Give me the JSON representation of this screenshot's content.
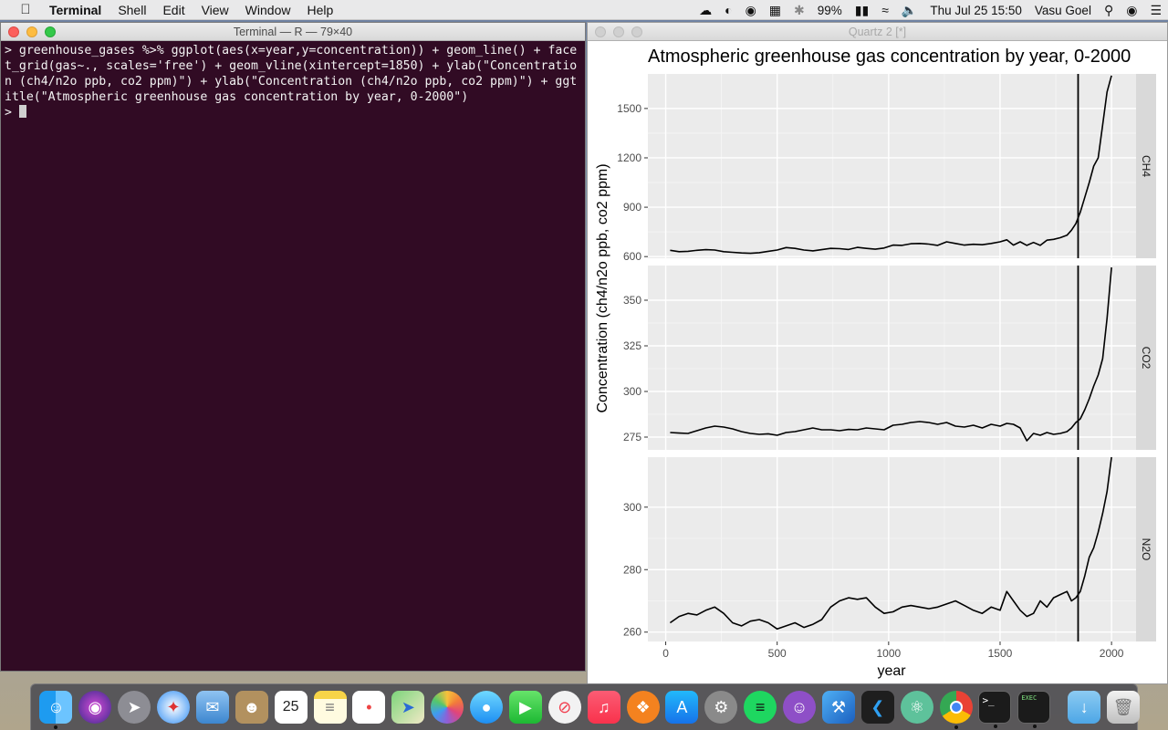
{
  "menubar": {
    "app_name": "Terminal",
    "items": [
      "Shell",
      "Edit",
      "View",
      "Window",
      "Help"
    ],
    "battery": "99%",
    "datetime": "Thu Jul 25  15:50",
    "user": "Vasu Goel"
  },
  "terminal": {
    "title": "Terminal — R — 79×40",
    "lines": [
      "> greenhouse_gases %>% ggplot(aes(x=year,y=concentration)) + geom_line() + face",
      "t_grid(gas~., scales='free') + geom_vline(xintercept=1850) + ylab(\"Concentratio",
      "n (ch4/n2o ppb, co2 ppm)\") + ylab(\"Concentration (ch4/n2o ppb, co2 ppm)\") + ggt",
      "itle(\"Atmospheric greenhouse gas concentration by year, 0-2000\")"
    ],
    "prompt": "> "
  },
  "quartz": {
    "title": "Quartz 2 [*]"
  },
  "chart_data": {
    "type": "line",
    "title": "Atmospheric greenhouse gas concentration by year, 0-2000",
    "xlabel": "year",
    "ylabel": "Concentration (ch4/n2o ppb, co2 ppm)",
    "xlim": [
      -80,
      2110
    ],
    "x_ticks": [
      0,
      500,
      1000,
      1500,
      2000
    ],
    "x_tick_labels": [
      "0",
      "500",
      "1000",
      "1500",
      "2000"
    ],
    "vline": 1850,
    "grid": true,
    "facets": [
      {
        "name": "CH4",
        "ylim": [
          590,
          1710
        ],
        "y_ticks": [
          600,
          900,
          1200,
          1500
        ],
        "y_tick_labels": [
          "600",
          "900",
          "1200",
          "1500"
        ],
        "x": [
          20,
          60,
          100,
          140,
          180,
          220,
          260,
          300,
          340,
          380,
          420,
          460,
          500,
          540,
          580,
          620,
          660,
          700,
          740,
          780,
          820,
          860,
          900,
          940,
          980,
          1020,
          1060,
          1100,
          1140,
          1180,
          1220,
          1260,
          1300,
          1340,
          1380,
          1420,
          1460,
          1500,
          1530,
          1560,
          1590,
          1620,
          1650,
          1680,
          1710,
          1740,
          1770,
          1800,
          1820,
          1840,
          1860,
          1880,
          1900,
          1920,
          1940,
          1960,
          1980,
          2000
        ],
        "values": [
          638,
          630,
          632,
          638,
          642,
          640,
          630,
          626,
          622,
          620,
          624,
          632,
          640,
          655,
          650,
          640,
          635,
          642,
          650,
          648,
          643,
          656,
          650,
          645,
          652,
          670,
          668,
          678,
          680,
          676,
          668,
          690,
          680,
          670,
          675,
          672,
          680,
          690,
          702,
          670,
          690,
          668,
          686,
          668,
          700,
          705,
          715,
          730,
          760,
          800,
          870,
          960,
          1050,
          1150,
          1200,
          1400,
          1600,
          1700
        ]
      },
      {
        "name": "CO2",
        "ylim": [
          268,
          369
        ],
        "y_ticks": [
          275,
          300,
          325,
          350
        ],
        "y_tick_labels": [
          "275",
          "300",
          "325",
          "350"
        ],
        "x": [
          20,
          60,
          100,
          140,
          180,
          220,
          260,
          300,
          340,
          380,
          420,
          460,
          500,
          540,
          580,
          620,
          660,
          700,
          740,
          780,
          820,
          860,
          900,
          940,
          980,
          1020,
          1060,
          1100,
          1140,
          1180,
          1220,
          1260,
          1300,
          1340,
          1380,
          1420,
          1460,
          1500,
          1530,
          1560,
          1590,
          1620,
          1650,
          1680,
          1710,
          1740,
          1770,
          1800,
          1820,
          1840,
          1860,
          1880,
          1900,
          1920,
          1940,
          1960,
          1980,
          2000
        ],
        "values": [
          277.5,
          277.2,
          277.0,
          278.5,
          280.0,
          281.0,
          280.5,
          279.5,
          278.0,
          277.0,
          276.5,
          276.8,
          276.0,
          277.5,
          278.0,
          279.0,
          280.0,
          279.0,
          279.0,
          278.5,
          279.2,
          279.0,
          280.0,
          279.5,
          279.0,
          281.5,
          282.0,
          283.0,
          283.5,
          283.0,
          282.0,
          283.0,
          281.0,
          280.5,
          281.5,
          280.0,
          282.0,
          281.0,
          282.5,
          282.0,
          280.0,
          273.0,
          277.0,
          276.0,
          277.5,
          276.5,
          277.0,
          278.0,
          280.0,
          283.0,
          285.0,
          290.0,
          296.0,
          303.0,
          309.0,
          318.0,
          340.0,
          368.0
        ]
      },
      {
        "name": "N2O",
        "ylim": [
          257,
          316
        ],
        "y_ticks": [
          260,
          280,
          300
        ],
        "y_tick_labels": [
          "260",
          "280",
          "300"
        ],
        "x": [
          20,
          60,
          100,
          140,
          180,
          220,
          260,
          300,
          340,
          380,
          420,
          460,
          500,
          540,
          580,
          620,
          660,
          700,
          740,
          780,
          820,
          860,
          900,
          940,
          980,
          1020,
          1060,
          1100,
          1140,
          1180,
          1220,
          1260,
          1300,
          1340,
          1380,
          1420,
          1460,
          1500,
          1530,
          1560,
          1590,
          1620,
          1650,
          1680,
          1710,
          1740,
          1770,
          1800,
          1820,
          1840,
          1860,
          1880,
          1900,
          1920,
          1940,
          1960,
          1980,
          2000
        ],
        "values": [
          263.0,
          265.0,
          266.0,
          265.5,
          267.0,
          268.0,
          266.0,
          263.0,
          262.0,
          263.5,
          264.0,
          263.0,
          261.0,
          262.0,
          263.0,
          261.5,
          262.5,
          264.0,
          268.0,
          270.0,
          271.0,
          270.5,
          271.0,
          268.0,
          266.0,
          266.5,
          268.0,
          268.5,
          268.0,
          267.5,
          268.0,
          269.0,
          270.0,
          268.5,
          267.0,
          266.0,
          268.0,
          267.0,
          273.0,
          270.0,
          267.0,
          265.0,
          266.0,
          270.0,
          268.0,
          271.0,
          272.0,
          273.0,
          270.0,
          271.0,
          273.0,
          278.0,
          284.0,
          287.0,
          292.0,
          298.0,
          305.0,
          316.0
        ]
      }
    ]
  }
}
